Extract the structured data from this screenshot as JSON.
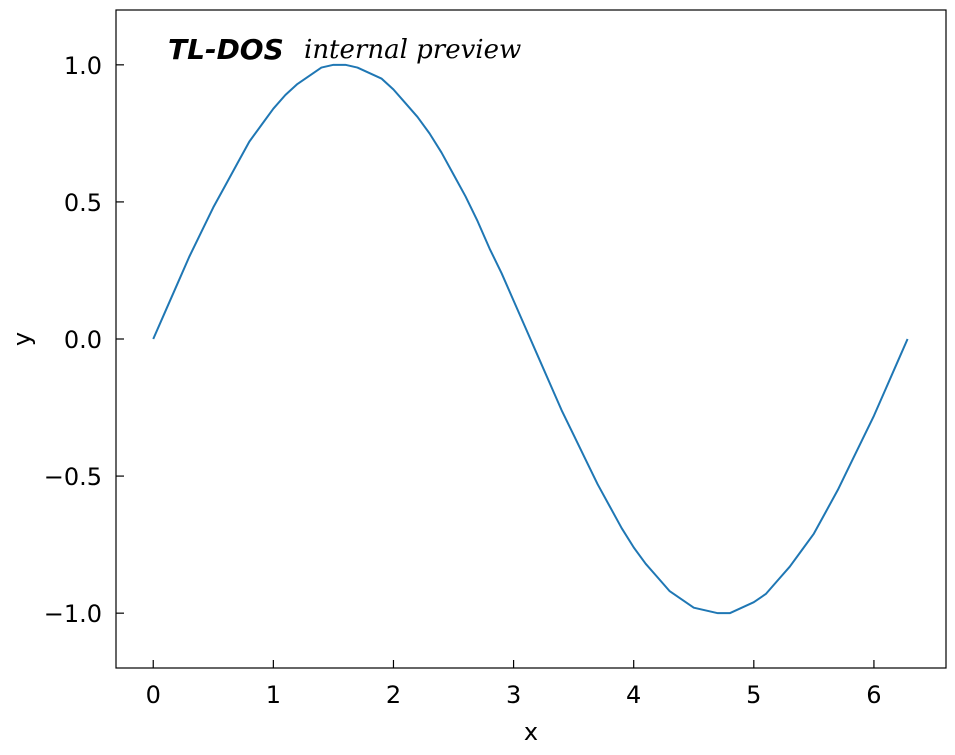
{
  "chart_data": {
    "type": "line",
    "title": "",
    "xlabel": "x",
    "ylabel": "y",
    "xlim": [
      -0.31,
      6.6
    ],
    "ylim": [
      -1.2,
      1.2
    ],
    "xticks": [
      0,
      1,
      2,
      3,
      4,
      5,
      6
    ],
    "xtick_labels": [
      "0",
      "1",
      "2",
      "3",
      "4",
      "5",
      "6"
    ],
    "yticks": [
      1.0,
      0.5,
      0.0,
      -0.5,
      -1.0
    ],
    "ytick_labels": [
      "1.0",
      "0.5",
      "0.0",
      "−0.5",
      "−1.0"
    ],
    "grid": false,
    "tick_direction": "in",
    "series": [
      {
        "color": "#1f77b4",
        "x": [
          0,
          0.1,
          0.2,
          0.3,
          0.4,
          0.5,
          0.6,
          0.7,
          0.8,
          0.9,
          1.0,
          1.1,
          1.2,
          1.3,
          1.4,
          1.5,
          1.6,
          1.7,
          1.8,
          1.9,
          2.0,
          2.1,
          2.2,
          2.3,
          2.4,
          2.5,
          2.6,
          2.7,
          2.8,
          2.9,
          3.0,
          3.1,
          3.2,
          3.3,
          3.4,
          3.5,
          3.6,
          3.7,
          3.8,
          3.9,
          4.0,
          4.1,
          4.2,
          4.3,
          4.4,
          4.5,
          4.6,
          4.7,
          4.8,
          4.9,
          5.0,
          5.1,
          5.2,
          5.3,
          5.4,
          5.5,
          5.6,
          5.7,
          5.8,
          5.9,
          6.0,
          6.1,
          6.2,
          6.28
        ],
        "y": [
          0.0,
          0.1,
          0.2,
          0.3,
          0.39,
          0.48,
          0.56,
          0.64,
          0.72,
          0.78,
          0.84,
          0.89,
          0.93,
          0.96,
          0.99,
          1.0,
          1.0,
          0.99,
          0.97,
          0.95,
          0.91,
          0.86,
          0.81,
          0.75,
          0.68,
          0.6,
          0.52,
          0.43,
          0.33,
          0.24,
          0.14,
          0.04,
          -0.06,
          -0.16,
          -0.26,
          -0.35,
          -0.44,
          -0.53,
          -0.61,
          -0.69,
          -0.76,
          -0.82,
          -0.87,
          -0.92,
          -0.95,
          -0.98,
          -0.99,
          -1.0,
          -1.0,
          -0.98,
          -0.96,
          -0.93,
          -0.88,
          -0.83,
          -0.77,
          -0.71,
          -0.63,
          -0.55,
          -0.46,
          -0.37,
          -0.28,
          -0.18,
          -0.08,
          0.0
        ]
      }
    ]
  },
  "watermark": {
    "brand": "TL-DOS",
    "note": "internal preview"
  }
}
